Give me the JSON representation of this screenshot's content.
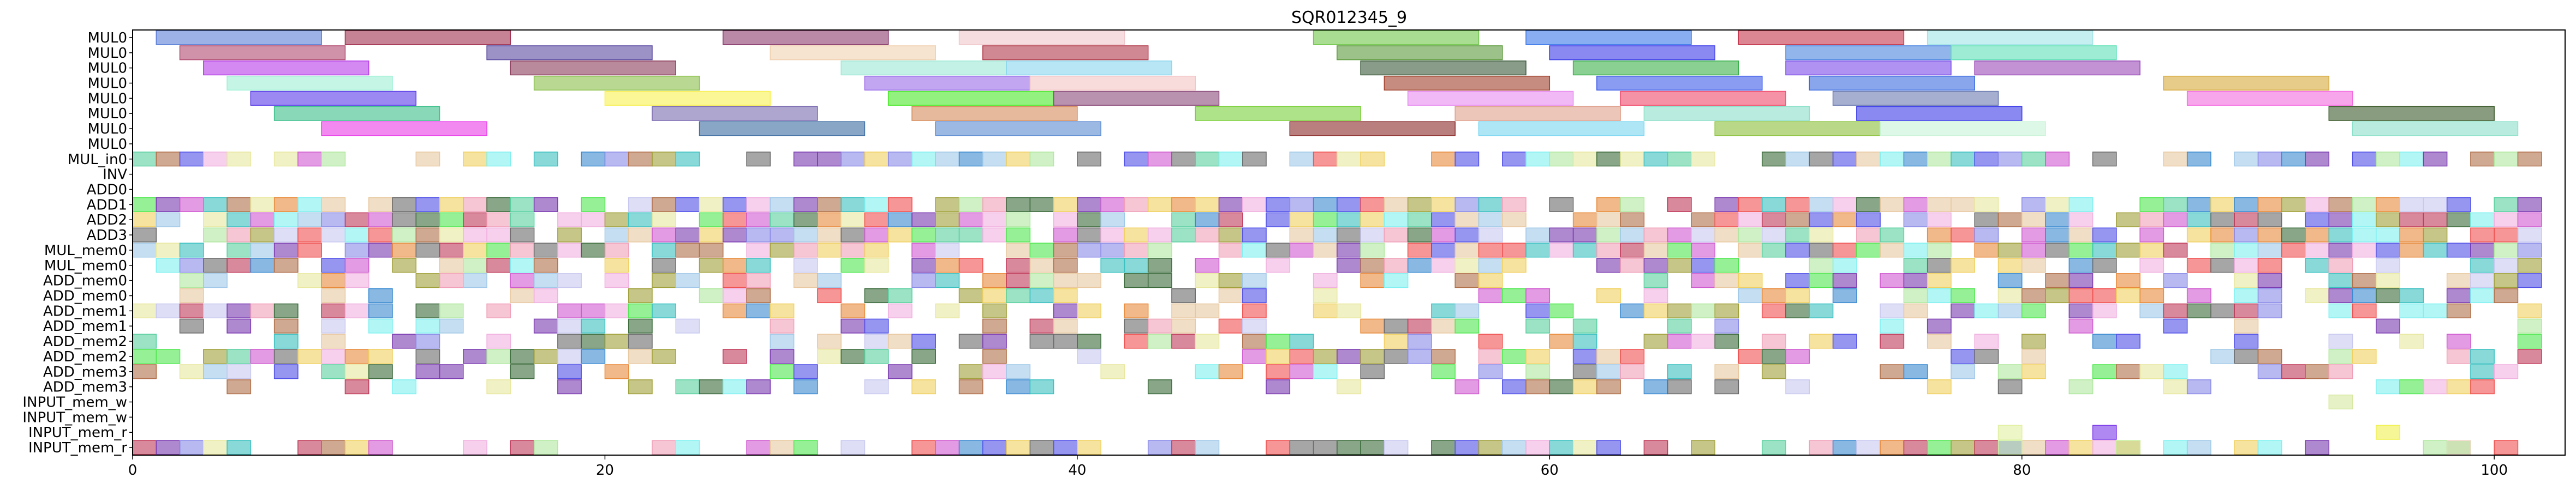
{
  "chart_data": {
    "type": "gantt",
    "title": "SQR012345_9",
    "xlim": [
      0,
      103
    ],
    "x_ticks": [
      0,
      20,
      40,
      60,
      80,
      100
    ],
    "rows": [
      "MUL0",
      "MUL0",
      "MUL0",
      "MUL0",
      "MUL0",
      "MUL0",
      "MUL0",
      "MUL0",
      "MUL_in0",
      "INV",
      "ADD0",
      "ADD1",
      "ADD2",
      "ADD3",
      "MUL_mem0",
      "MUL_mem0",
      "ADD_mem0",
      "ADD_mem0",
      "ADD_mem1",
      "ADD_mem1",
      "ADD_mem2",
      "ADD_mem2",
      "ADD_mem3",
      "ADD_mem3",
      "INPUT_mem_w",
      "INPUT_mem_w",
      "INPUT_mem_r",
      "INPUT_mem_r"
    ],
    "long_bars": [
      {
        "row": 0,
        "start": 1,
        "end": 8,
        "color": "#5b7fd6"
      },
      {
        "row": 0,
        "start": 9,
        "end": 16,
        "color": "#a0304f"
      },
      {
        "row": 0,
        "start": 25,
        "end": 32,
        "color": "#8a3a6c"
      },
      {
        "row": 0,
        "start": 35,
        "end": 42,
        "color": "#f0c8cc"
      },
      {
        "row": 0,
        "start": 50,
        "end": 57,
        "color": "#6fc74a"
      },
      {
        "row": 0,
        "start": 59,
        "end": 66,
        "color": "#3a78e8"
      },
      {
        "row": 0,
        "start": 68,
        "end": 75,
        "color": "#c4344b"
      },
      {
        "row": 0,
        "start": 76,
        "end": 83,
        "color": "#9fe4e6"
      },
      {
        "row": 1,
        "start": 2,
        "end": 9,
        "color": "#b04a6e"
      },
      {
        "row": 1,
        "start": 15,
        "end": 22,
        "color": "#5a4aa0"
      },
      {
        "row": 1,
        "start": 27,
        "end": 34,
        "color": "#f0d0b0"
      },
      {
        "row": 1,
        "start": 36,
        "end": 43,
        "color": "#b03a4a"
      },
      {
        "row": 1,
        "start": 51,
        "end": 58,
        "color": "#5a9a3a"
      },
      {
        "row": 1,
        "start": 60,
        "end": 67,
        "color": "#3a3ae8"
      },
      {
        "row": 1,
        "start": 70,
        "end": 77,
        "color": "#4a84e0"
      },
      {
        "row": 1,
        "start": 77,
        "end": 84,
        "color": "#5ee0b6"
      },
      {
        "row": 2,
        "start": 3,
        "end": 10,
        "color": "#b63ae8"
      },
      {
        "row": 2,
        "start": 16,
        "end": 23,
        "color": "#8a3a5a"
      },
      {
        "row": 2,
        "start": 30,
        "end": 37,
        "color": "#9de8d6"
      },
      {
        "row": 2,
        "start": 37,
        "end": 44,
        "color": "#8ad6ee"
      },
      {
        "row": 2,
        "start": 52,
        "end": 59,
        "color": "#3a5a3a"
      },
      {
        "row": 2,
        "start": 61,
        "end": 68,
        "color": "#3ab04a"
      },
      {
        "row": 2,
        "start": 70,
        "end": 77,
        "color": "#7a4ae8"
      },
      {
        "row": 2,
        "start": 78,
        "end": 85,
        "color": "#9a4ab8"
      },
      {
        "row": 3,
        "start": 4,
        "end": 11,
        "color": "#9ef0d4"
      },
      {
        "row": 3,
        "start": 17,
        "end": 24,
        "color": "#8abf4a"
      },
      {
        "row": 3,
        "start": 31,
        "end": 38,
        "color": "#9a6ae8"
      },
      {
        "row": 3,
        "start": 38,
        "end": 45,
        "color": "#f4c4c4"
      },
      {
        "row": 3,
        "start": 53,
        "end": 60,
        "color": "#a0402a"
      },
      {
        "row": 3,
        "start": 62,
        "end": 69,
        "color": "#3a5ae8"
      },
      {
        "row": 3,
        "start": 71,
        "end": 78,
        "color": "#3a6ae0"
      },
      {
        "row": 3,
        "start": 86,
        "end": 93,
        "color": "#d6a83a"
      },
      {
        "row": 4,
        "start": 5,
        "end": 12,
        "color": "#5a3ae8"
      },
      {
        "row": 4,
        "start": 20,
        "end": 27,
        "color": "#f8f050"
      },
      {
        "row": 4,
        "start": 32,
        "end": 39,
        "color": "#4ae82a"
      },
      {
        "row": 4,
        "start": 39,
        "end": 46,
        "color": "#8a4a7a"
      },
      {
        "row": 4,
        "start": 54,
        "end": 61,
        "color": "#e88af0"
      },
      {
        "row": 4,
        "start": 63,
        "end": 70,
        "color": "#f04a6a"
      },
      {
        "row": 4,
        "start": 72,
        "end": 79,
        "color": "#6a7ab0"
      },
      {
        "row": 4,
        "start": 87,
        "end": 94,
        "color": "#f46ae0"
      },
      {
        "row": 5,
        "start": 6,
        "end": 13,
        "color": "#3ac08a"
      },
      {
        "row": 5,
        "start": 22,
        "end": 29,
        "color": "#7a6ab0"
      },
      {
        "row": 5,
        "start": 33,
        "end": 40,
        "color": "#d68a5a"
      },
      {
        "row": 5,
        "start": 45,
        "end": 52,
        "color": "#7ad03a"
      },
      {
        "row": 5,
        "start": 56,
        "end": 63,
        "color": "#e0a08a"
      },
      {
        "row": 5,
        "start": 64,
        "end": 71,
        "color": "#8ae0c8"
      },
      {
        "row": 5,
        "start": 73,
        "end": 80,
        "color": "#3a3ae8"
      },
      {
        "row": 5,
        "start": 93,
        "end": 100,
        "color": "#3a5a2a"
      },
      {
        "row": 6,
        "start": 8,
        "end": 15,
        "color": "#e83ae8"
      },
      {
        "row": 6,
        "start": 24,
        "end": 31,
        "color": "#3a6aa0"
      },
      {
        "row": 6,
        "start": 34,
        "end": 41,
        "color": "#5a8ad0"
      },
      {
        "row": 6,
        "start": 49,
        "end": 56,
        "color": "#8a2a2a"
      },
      {
        "row": 6,
        "start": 57,
        "end": 64,
        "color": "#7ad6f0"
      },
      {
        "row": 6,
        "start": 67,
        "end": 74,
        "color": "#8ac03a"
      },
      {
        "row": 6,
        "start": 74,
        "end": 81,
        "color": "#c8f4d8"
      },
      {
        "row": 6,
        "start": 94,
        "end": 101,
        "color": "#8ae0c8"
      }
    ],
    "dense_rows": {
      "rows": [
        8,
        10,
        11,
        12,
        13,
        14,
        15,
        16,
        17,
        18,
        19,
        20,
        21,
        22,
        23,
        26,
        27
      ],
      "slot_width": 1,
      "x_start": 0,
      "x_end": 102,
      "palette": [
        "#a0c8e8",
        "#f0a0b8",
        "#7a3ab0",
        "#3a8ad0",
        "#e88a3a",
        "#b0e8a0",
        "#f0d060",
        "#5ad0a0",
        "#c03a5a",
        "#8a8ae8",
        "#3ac0c0",
        "#e8c8a0",
        "#6a6a6a",
        "#d05ad0",
        "#50e850",
        "#f05050",
        "#5050e8",
        "#c8c8f0",
        "#a0a03a",
        "#e8e8a0",
        "#3a6a3a",
        "#f0b0e0",
        "#80f0f0",
        "#b0704a"
      ],
      "occupancy_pct": [
        72,
        0,
        88,
        86,
        88,
        88,
        62,
        56,
        52,
        66,
        38,
        48,
        52,
        46,
        40,
        0,
        74
      ]
    },
    "sparse_marks": [
      {
        "row": 24,
        "start": 93,
        "end": 94,
        "color": "#d6e8a0"
      },
      {
        "row": 26,
        "start": 79,
        "end": 80,
        "color": "#e0f0a0"
      },
      {
        "row": 26,
        "start": 83,
        "end": 84,
        "color": "#7a3ae8"
      },
      {
        "row": 26,
        "start": 95,
        "end": 96,
        "color": "#f0f050"
      },
      {
        "row": 27,
        "start": 79,
        "end": 80,
        "color": "#d0f0a0"
      },
      {
        "row": 27,
        "start": 84,
        "end": 85,
        "color": "#c8f0a0"
      },
      {
        "row": 27,
        "start": 98,
        "end": 99,
        "color": "#f0d8c8"
      }
    ]
  }
}
